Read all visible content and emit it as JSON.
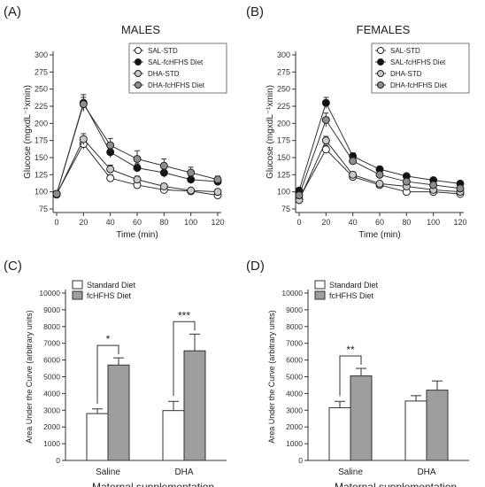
{
  "chart_data": [
    {
      "type": "line",
      "panel_label": "(A)",
      "title": "MALES",
      "xlabel": "Time (min)",
      "ylabel": "Glucose (mgxdL⁻¹xmin)",
      "x": [
        0,
        20,
        40,
        60,
        80,
        100,
        120
      ],
      "xticks": [
        "0",
        "20",
        "40",
        "60",
        "80",
        "100",
        "120"
      ],
      "ylim": [
        75,
        300
      ],
      "yticks": [
        "75",
        "100",
        "125",
        "150",
        "175",
        "200",
        "225",
        "250",
        "275",
        "300"
      ],
      "legend_position": "top-right",
      "series": [
        {
          "name": "SAL-STD",
          "marker": "open",
          "values": [
            97,
            170,
            120,
            110,
            103,
            101,
            95
          ],
          "errors": [
            3,
            8,
            5,
            4,
            3,
            3,
            3
          ]
        },
        {
          "name": "SAL-fcHFHS Diet",
          "marker": "black",
          "values": [
            97,
            230,
            158,
            135,
            128,
            118,
            115
          ],
          "errors": [
            3,
            12,
            8,
            6,
            7,
            6,
            5
          ]
        },
        {
          "name": "DHA-STD",
          "marker": "lightgray",
          "values": [
            96,
            177,
            133,
            118,
            108,
            102,
            100
          ],
          "errors": [
            3,
            8,
            6,
            5,
            4,
            3,
            3
          ]
        },
        {
          "name": "DHA-fcHFHS Diet",
          "marker": "darkgray",
          "values": [
            97,
            228,
            168,
            148,
            138,
            128,
            118
          ],
          "errors": [
            3,
            10,
            10,
            12,
            10,
            8,
            5
          ]
        }
      ],
      "colors": {
        "open": "#ffffff",
        "black": "#111111",
        "lightgray": "#c8c8c8",
        "darkgray": "#8e8e8e"
      }
    },
    {
      "type": "line",
      "panel_label": "(B)",
      "title": "FEMALES",
      "xlabel": "Time (min)",
      "ylabel": "Glucose (mgxdL⁻¹xmin)",
      "x": [
        0,
        20,
        40,
        60,
        80,
        100,
        120
      ],
      "xticks": [
        "0",
        "20",
        "40",
        "60",
        "80",
        "100",
        "120"
      ],
      "ylim": [
        75,
        300
      ],
      "yticks": [
        "75",
        "100",
        "125",
        "150",
        "175",
        "200",
        "225",
        "250",
        "275",
        "300"
      ],
      "legend_position": "top-right",
      "series": [
        {
          "name": "SAL-STD",
          "marker": "open",
          "values": [
            90,
            162,
            122,
            110,
            100,
            100,
            97
          ],
          "errors": [
            3,
            6,
            4,
            3,
            3,
            3,
            3
          ]
        },
        {
          "name": "SAL-fcHFHS Diet",
          "marker": "black",
          "values": [
            102,
            230,
            152,
            133,
            123,
            117,
            112
          ],
          "errors": [
            3,
            8,
            5,
            4,
            3,
            3,
            3
          ]
        },
        {
          "name": "DHA-STD",
          "marker": "lightgray",
          "values": [
            88,
            175,
            125,
            112,
            108,
            103,
            100
          ],
          "errors": [
            3,
            6,
            4,
            3,
            3,
            3,
            3
          ]
        },
        {
          "name": "DHA-fcHFHS Diet",
          "marker": "darkgray",
          "values": [
            95,
            205,
            145,
            125,
            115,
            110,
            105
          ],
          "errors": [
            3,
            10,
            5,
            4,
            3,
            3,
            3
          ]
        }
      ],
      "colors": {
        "open": "#ffffff",
        "black": "#111111",
        "lightgray": "#c8c8c8",
        "darkgray": "#8e8e8e"
      }
    },
    {
      "type": "bar",
      "panel_label": "(C)",
      "xlabel": "Maternal supplementation",
      "ylabel": "Area Under the Curve (arbitrary units)",
      "categories": [
        "Saline",
        "DHA"
      ],
      "ylim": [
        0,
        10000
      ],
      "yticks": [
        "0",
        "1000",
        "2000",
        "3000",
        "4000",
        "5000",
        "6000",
        "7000",
        "8000",
        "9000",
        "10000"
      ],
      "legend_position": "top-left",
      "series": [
        {
          "name": "Standard Diet",
          "fill": "#ffffff",
          "values": [
            2800,
            2980
          ],
          "errors": [
            280,
            550
          ]
        },
        {
          "name": "fcHFHS Diet",
          "fill": "#9e9e9e",
          "values": [
            5700,
            6550
          ],
          "errors": [
            430,
            1000
          ]
        }
      ],
      "significance": [
        {
          "category": "Saline",
          "label": "*"
        },
        {
          "category": "DHA",
          "label": "***"
        }
      ]
    },
    {
      "type": "bar",
      "panel_label": "(D)",
      "xlabel": "Maternal supplementation",
      "ylabel": "Area Under the Curve (arbitrary units)",
      "categories": [
        "Saline",
        "DHA"
      ],
      "ylim": [
        0,
        10000
      ],
      "yticks": [
        "0",
        "1000",
        "2000",
        "3000",
        "4000",
        "5000",
        "6000",
        "7000",
        "8000",
        "9000",
        "10000"
      ],
      "legend_position": "top-left",
      "series": [
        {
          "name": "Standard Diet",
          "fill": "#ffffff",
          "values": [
            3150,
            3550
          ],
          "errors": [
            380,
            320
          ]
        },
        {
          "name": "fcHFHS Diet",
          "fill": "#9e9e9e",
          "values": [
            5050,
            4200
          ],
          "errors": [
            450,
            550
          ]
        }
      ],
      "significance": [
        {
          "category": "Saline",
          "label": "**"
        }
      ]
    }
  ]
}
